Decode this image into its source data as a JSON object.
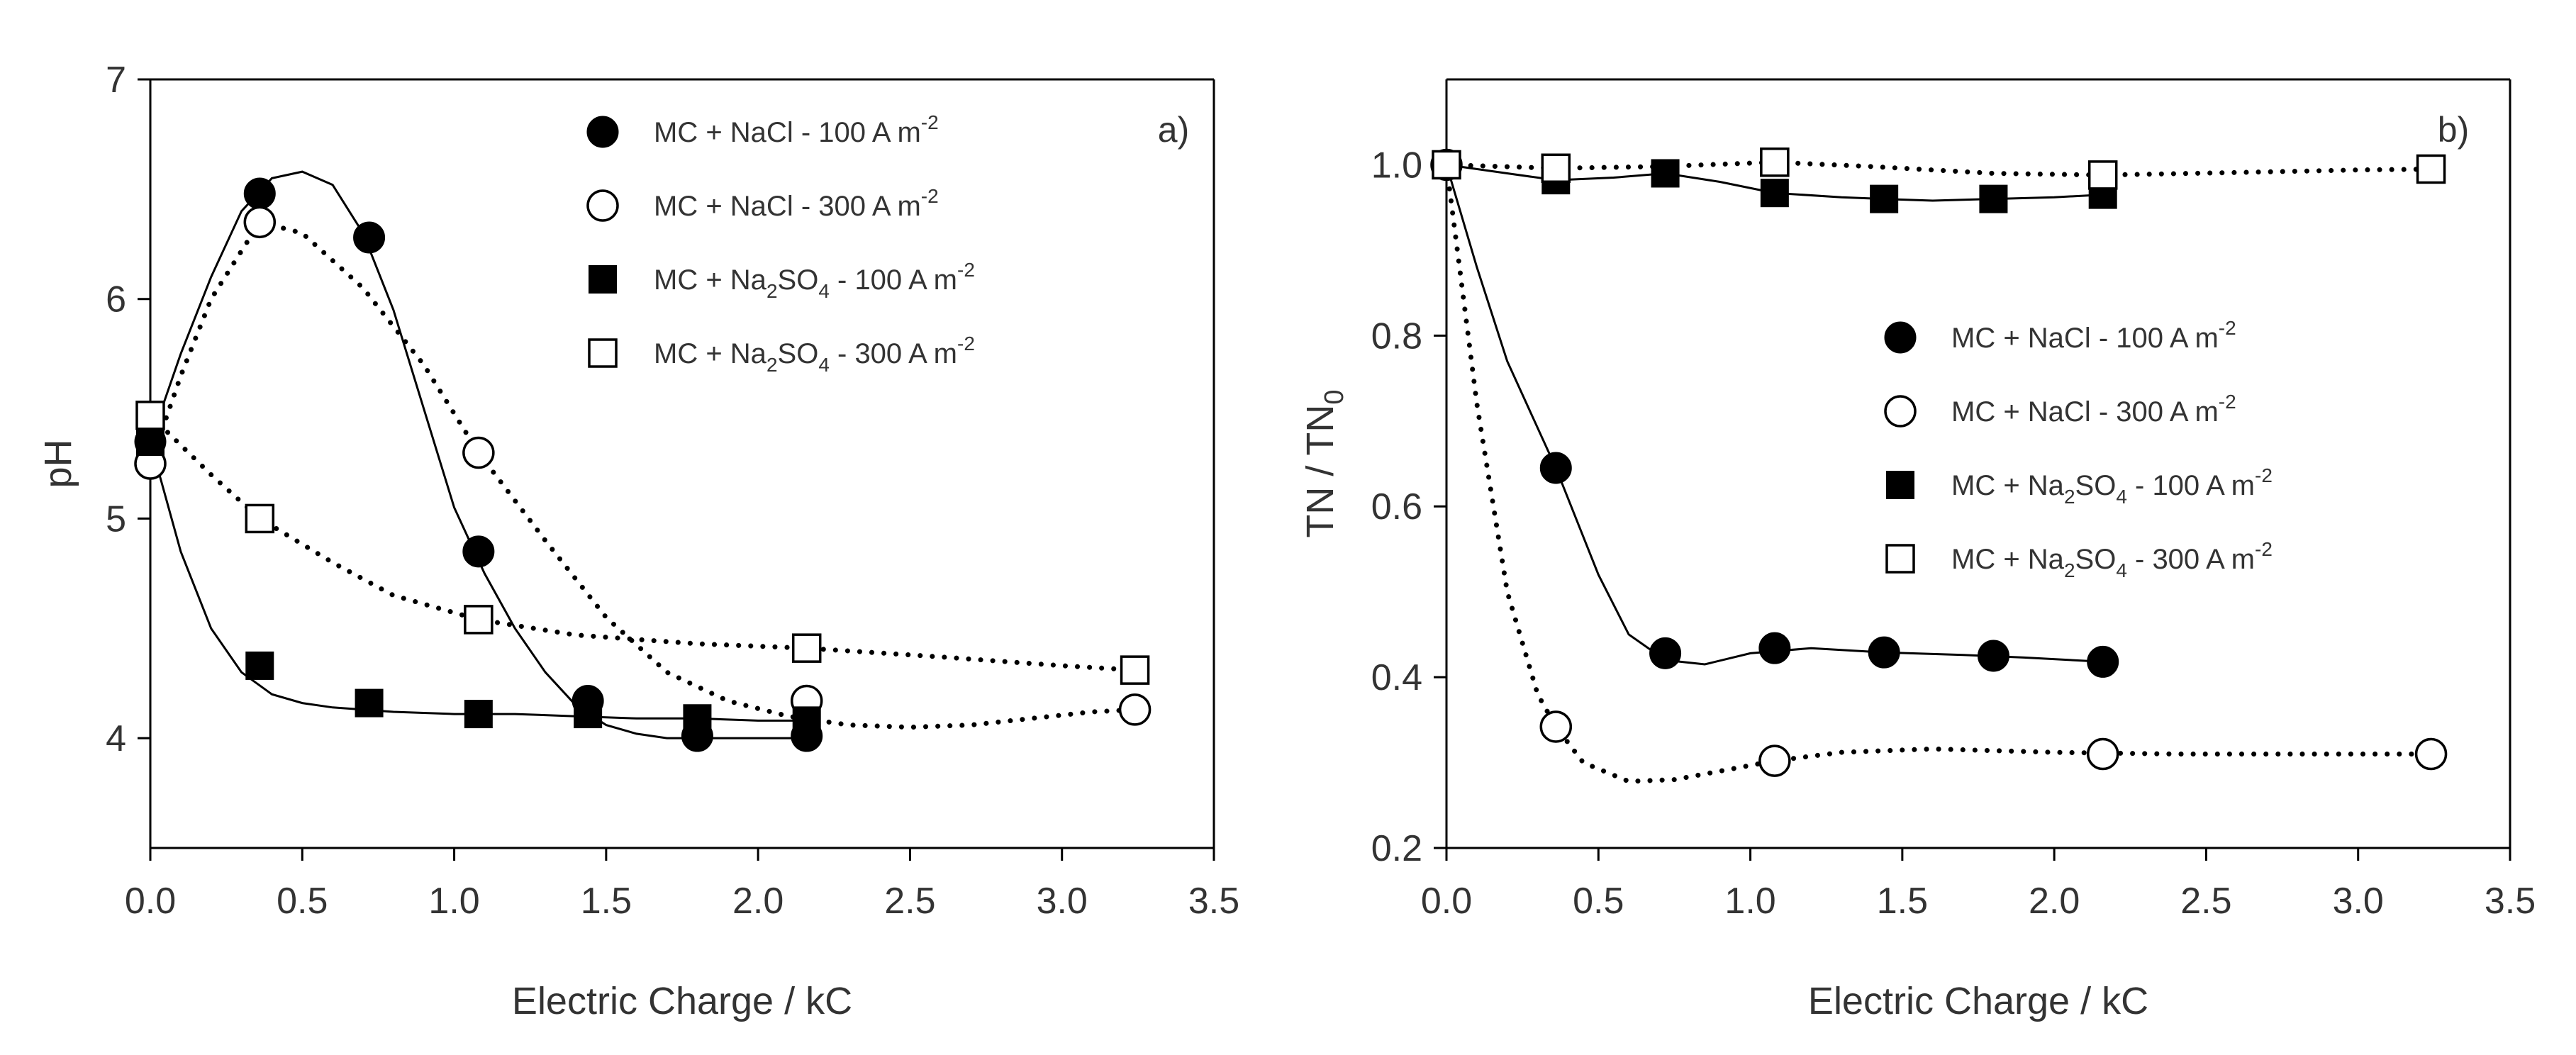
{
  "figure": {
    "colors": {
      "ink": "#000000",
      "text": "#333333",
      "paper": "#ffffff"
    }
  },
  "chart_data": [
    {
      "id": "a",
      "type": "scatter",
      "panel_label": "a)",
      "xlabel": "Electric Charge / kC",
      "ylabel": "pH",
      "xlim": [
        0,
        3.5
      ],
      "ylim": [
        3.5,
        7
      ],
      "xticks": [
        "0.0",
        "0.5",
        "1.0",
        "1.5",
        "2.0",
        "2.5",
        "3.0",
        "3.5"
      ],
      "yticks": [
        "4",
        "5",
        "6",
        "7"
      ],
      "legend_position": "top-right",
      "series": [
        {
          "name": "MC + NaCl - 100 A m-2",
          "label_main": "MC + NaCl - 100 A m",
          "label_sup": "-2",
          "marker": "circle-filled",
          "line": "solid",
          "x": [
            0,
            0.36,
            0.72,
            1.08,
            1.44,
            1.8,
            2.16
          ],
          "y": [
            5.35,
            6.48,
            6.28,
            4.85,
            4.17,
            4.01,
            4.01
          ],
          "curve_x": [
            0,
            0.1,
            0.2,
            0.3,
            0.4,
            0.5,
            0.6,
            0.7,
            0.8,
            0.9,
            1.0,
            1.1,
            1.2,
            1.3,
            1.4,
            1.5,
            1.6,
            1.7,
            1.8,
            1.9,
            2.0,
            2.16
          ],
          "curve_y": [
            5.35,
            5.75,
            6.1,
            6.4,
            6.55,
            6.58,
            6.52,
            6.3,
            5.95,
            5.5,
            5.05,
            4.75,
            4.5,
            4.3,
            4.15,
            4.06,
            4.02,
            4.0,
            4.0,
            4.0,
            4.0,
            4.0
          ]
        },
        {
          "name": "MC + NaCl - 300 A m-2",
          "label_main": "MC + NaCl - 300 A m",
          "label_sup": "-2",
          "marker": "circle-open",
          "line": "dotted",
          "x": [
            0,
            0.36,
            1.08,
            2.16,
            3.24
          ],
          "y": [
            5.25,
            6.35,
            5.3,
            4.17,
            4.13
          ],
          "curve_x": [
            0,
            0.1,
            0.2,
            0.36,
            0.5,
            0.7,
            0.9,
            1.08,
            1.3,
            1.5,
            1.7,
            1.9,
            2.1,
            2.3,
            2.5,
            2.7,
            2.9,
            3.1,
            3.24
          ],
          "curve_y": [
            5.25,
            5.65,
            6.0,
            6.35,
            6.3,
            6.05,
            5.7,
            5.3,
            4.9,
            4.55,
            4.3,
            4.17,
            4.1,
            4.06,
            4.05,
            4.06,
            4.09,
            4.12,
            4.13
          ]
        },
        {
          "name": "MC + Na2SO4 - 100 A m-2",
          "label_main": "MC + Na",
          "label_sub": "2",
          "label_mid": "SO",
          "label_sub2": "4",
          "label_tail": " - 100 A m",
          "label_sup": "-2",
          "marker": "square-filled",
          "line": "solid",
          "x": [
            0,
            0.36,
            0.72,
            1.08,
            1.44,
            1.8,
            2.16
          ],
          "y": [
            5.35,
            4.33,
            4.16,
            4.11,
            4.11,
            4.09,
            4.08
          ],
          "curve_x": [
            0,
            0.1,
            0.2,
            0.3,
            0.4,
            0.5,
            0.6,
            0.8,
            1.0,
            1.2,
            1.4,
            1.6,
            1.8,
            2.0,
            2.16
          ],
          "curve_y": [
            5.35,
            4.85,
            4.5,
            4.3,
            4.2,
            4.16,
            4.14,
            4.12,
            4.11,
            4.11,
            4.1,
            4.09,
            4.09,
            4.08,
            4.08
          ]
        },
        {
          "name": "MC + Na2SO4 - 300 A m-2",
          "label_main": "MC + Na",
          "label_sub": "2",
          "label_mid": "SO",
          "label_sub2": "4",
          "label_tail": " - 300 A m",
          "label_sup": "-2",
          "marker": "square-open",
          "line": "dotted",
          "x": [
            0,
            0.36,
            1.08,
            2.16,
            3.24
          ],
          "y": [
            5.47,
            5.0,
            4.54,
            4.41,
            4.31
          ],
          "curve_x": [
            0,
            0.2,
            0.36,
            0.6,
            0.8,
            1.08,
            1.4,
            1.8,
            2.16,
            2.6,
            3.0,
            3.24
          ],
          "curve_y": [
            5.47,
            5.2,
            5.0,
            4.8,
            4.65,
            4.54,
            4.47,
            4.43,
            4.41,
            4.37,
            4.33,
            4.31
          ]
        }
      ]
    },
    {
      "id": "b",
      "type": "scatter",
      "panel_label": "b)",
      "xlabel": "Electric Charge / kC",
      "ylabel_main": "TN / TN",
      "ylabel_sub": "0",
      "xlim": [
        0,
        3.5
      ],
      "ylim": [
        0.2,
        1.1
      ],
      "xticks": [
        "0.0",
        "0.5",
        "1.0",
        "1.5",
        "2.0",
        "2.5",
        "3.0",
        "3.5"
      ],
      "yticks": [
        "0.2",
        "0.4",
        "0.6",
        "0.8",
        "1.0"
      ],
      "legend_position": "center-right",
      "series": [
        {
          "name": "MC + NaCl - 100 A m-2",
          "label_main": "MC + NaCl - 100 A m",
          "label_sup": "-2",
          "marker": "circle-filled",
          "line": "solid",
          "x": [
            0,
            0.36,
            0.72,
            1.08,
            1.44,
            1.8,
            2.16
          ],
          "y": [
            1.0,
            0.645,
            0.428,
            0.434,
            0.429,
            0.425,
            0.418
          ],
          "curve_x": [
            0,
            0.1,
            0.2,
            0.36,
            0.5,
            0.6,
            0.72,
            0.85,
            1.0,
            1.2,
            1.44,
            1.7,
            1.9,
            2.16
          ],
          "curve_y": [
            1.0,
            0.88,
            0.77,
            0.645,
            0.52,
            0.45,
            0.42,
            0.415,
            0.428,
            0.434,
            0.429,
            0.426,
            0.423,
            0.418
          ]
        },
        {
          "name": "MC + NaCl - 300 A m-2",
          "label_main": "MC + NaCl - 300 A m",
          "label_sup": "-2",
          "marker": "circle-open",
          "line": "dotted",
          "x": [
            0,
            0.36,
            1.08,
            2.16,
            3.24
          ],
          "y": [
            1.0,
            0.342,
            0.302,
            0.31,
            0.31
          ],
          "curve_x": [
            0,
            0.1,
            0.2,
            0.3,
            0.36,
            0.45,
            0.6,
            0.75,
            0.9,
            1.08,
            1.3,
            1.6,
            2.0,
            2.4,
            2.8,
            3.24
          ],
          "curve_y": [
            1.0,
            0.72,
            0.5,
            0.38,
            0.342,
            0.3,
            0.278,
            0.28,
            0.29,
            0.302,
            0.312,
            0.316,
            0.312,
            0.31,
            0.31,
            0.31
          ]
        },
        {
          "name": "MC + Na2SO4 - 100 A m-2",
          "label_main": "MC + Na",
          "label_sub": "2",
          "label_mid": "SO",
          "label_sub2": "4",
          "label_tail": " - 100 A m",
          "label_sup": "-2",
          "marker": "square-filled",
          "line": "solid",
          "x": [
            0,
            0.36,
            0.72,
            1.08,
            1.44,
            1.8,
            2.16
          ],
          "y": [
            1.0,
            0.982,
            0.99,
            0.967,
            0.96,
            0.96,
            0.965
          ],
          "curve_x": [
            0,
            0.2,
            0.36,
            0.55,
            0.72,
            0.9,
            1.08,
            1.3,
            1.44,
            1.6,
            1.8,
            2.0,
            2.16
          ],
          "curve_y": [
            1.0,
            0.99,
            0.982,
            0.985,
            0.99,
            0.98,
            0.967,
            0.962,
            0.96,
            0.958,
            0.96,
            0.962,
            0.965
          ]
        },
        {
          "name": "MC + Na2SO4 - 300 A m-2",
          "label_main": "MC + Na",
          "label_sub": "2",
          "label_mid": "SO",
          "label_sub2": "4",
          "label_tail": " - 300 A m",
          "label_sup": "-2",
          "marker": "square-open",
          "line": "dotted",
          "x": [
            0,
            0.36,
            1.08,
            2.16,
            3.24
          ],
          "y": [
            1.0,
            0.996,
            1.003,
            0.988,
            0.995
          ],
          "curve_x": [
            0,
            0.36,
            0.7,
            1.08,
            1.4,
            1.8,
            2.16,
            2.6,
            3.0,
            3.24
          ],
          "curve_y": [
            1.0,
            0.996,
            0.998,
            1.003,
            0.998,
            0.99,
            0.988,
            0.991,
            0.994,
            0.995
          ]
        }
      ]
    }
  ]
}
